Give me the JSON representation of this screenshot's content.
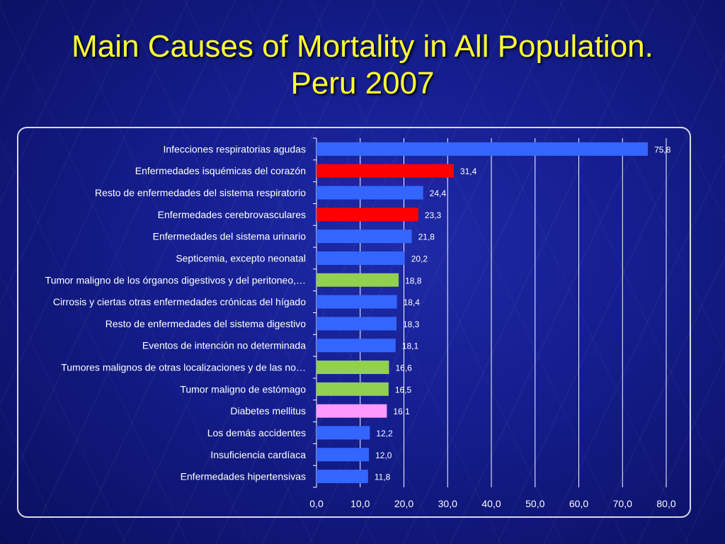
{
  "slide": {
    "title_line1": "Main Causes of Mortality in All Population.",
    "title_line2": "Peru 2007"
  },
  "colors": {
    "blue": "#3366ff",
    "red": "#ff0000",
    "green": "#92d050",
    "pink": "#ff99ff",
    "text": "#ffffff",
    "title": "#ffff33"
  },
  "chart_data": {
    "type": "bar",
    "orientation": "horizontal",
    "categories": [
      "Infecciones respiratorias agudas",
      "Enfermedades isquémicas del corazón",
      "Resto de enfermedades del sistema respiratorio",
      "Enfermedades cerebrovasculares",
      "Enfermedades del sistema urinario",
      "Septicemia, excepto neonatal",
      "Tumor maligno de los órganos digestivos y del peritoneo,…",
      "Cirrosis y ciertas otras enfermedades crónicas del hígado",
      "Resto de enfermedades del sistema digestivo",
      "Eventos de intención no determinada",
      "Tumores malignos de otras localizaciones y de las no…",
      "Tumor maligno de estómago",
      "Diabetes mellitus",
      "Los demás accidentes",
      "Insuficiencia cardíaca",
      "Enfermedades hipertensivas"
    ],
    "values": [
      75.8,
      31.4,
      24.4,
      23.3,
      21.8,
      20.2,
      18.8,
      18.4,
      18.3,
      18.1,
      16.6,
      16.5,
      16.1,
      12.2,
      12.0,
      11.8
    ],
    "value_labels": [
      "75,8",
      "31,4",
      "24,4",
      "23,3",
      "21,8",
      "20,2",
      "18,8",
      "18,4",
      "18,3",
      "18,1",
      "16,6",
      "16,5",
      "16,1",
      "12,2",
      "12,0",
      "11,8"
    ],
    "bar_colors": [
      "blue",
      "red",
      "blue",
      "red",
      "blue",
      "blue",
      "green",
      "blue",
      "blue",
      "blue",
      "green",
      "green",
      "pink",
      "blue",
      "blue",
      "blue"
    ],
    "xlim": [
      0,
      80
    ],
    "xticks": [
      0,
      10,
      20,
      30,
      40,
      50,
      60,
      70,
      80
    ],
    "xtick_labels": [
      "0,0",
      "10,0",
      "20,0",
      "30,0",
      "40,0",
      "50,0",
      "60,0",
      "70,0",
      "80,0"
    ],
    "grid": true,
    "legend": "none"
  }
}
